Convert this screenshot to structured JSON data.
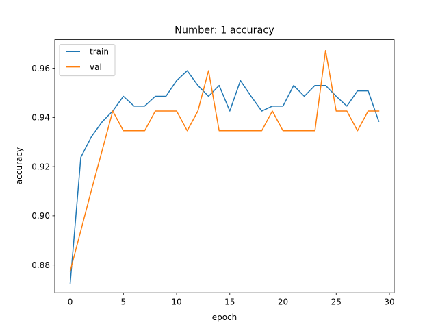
{
  "chart_data": {
    "type": "line",
    "title": "Number: 1 accuracy",
    "xlabel": "epoch",
    "ylabel": "accuracy",
    "xlim": [
      -1.45,
      30.45
    ],
    "ylim": [
      0.8687,
      0.9717
    ],
    "xticks": [
      0,
      5,
      10,
      15,
      20,
      25,
      30
    ],
    "xtick_labels": [
      "0",
      "5",
      "10",
      "15",
      "20",
      "25",
      "30"
    ],
    "yticks": [
      0.88,
      0.9,
      0.92,
      0.94,
      0.96
    ],
    "ytick_labels": [
      "0.88",
      "0.90",
      "0.92",
      "0.94",
      "0.96"
    ],
    "grid": false,
    "legend_position": "top-left",
    "x": [
      0,
      1,
      2,
      3,
      4,
      5,
      6,
      7,
      8,
      9,
      10,
      11,
      12,
      13,
      14,
      15,
      16,
      17,
      18,
      19,
      20,
      21,
      22,
      23,
      24,
      25,
      26,
      27,
      28,
      29
    ],
    "series": [
      {
        "name": "train",
        "color": "#1f77b4",
        "values": [
          0.8725,
          0.9238,
          0.9322,
          0.9382,
          0.9426,
          0.9486,
          0.9446,
          0.9446,
          0.9486,
          0.9486,
          0.955,
          0.959,
          0.953,
          0.9486,
          0.953,
          0.9426,
          0.955,
          0.9486,
          0.9426,
          0.9446,
          0.9446,
          0.953,
          0.9486,
          0.953,
          0.953,
          0.9486,
          0.9446,
          0.9508,
          0.9508,
          0.9384
        ]
      },
      {
        "name": "val",
        "color": "#ff7f0e",
        "values": [
          0.8775,
          0.894,
          0.9105,
          0.9265,
          0.9426,
          0.9346,
          0.9346,
          0.9346,
          0.9426,
          0.9426,
          0.9426,
          0.9346,
          0.9426,
          0.959,
          0.9346,
          0.9346,
          0.9346,
          0.9346,
          0.9346,
          0.9426,
          0.9346,
          0.9346,
          0.9346,
          0.9346,
          0.9672,
          0.9426,
          0.9426,
          0.9346,
          0.9426,
          0.9426
        ]
      }
    ]
  }
}
